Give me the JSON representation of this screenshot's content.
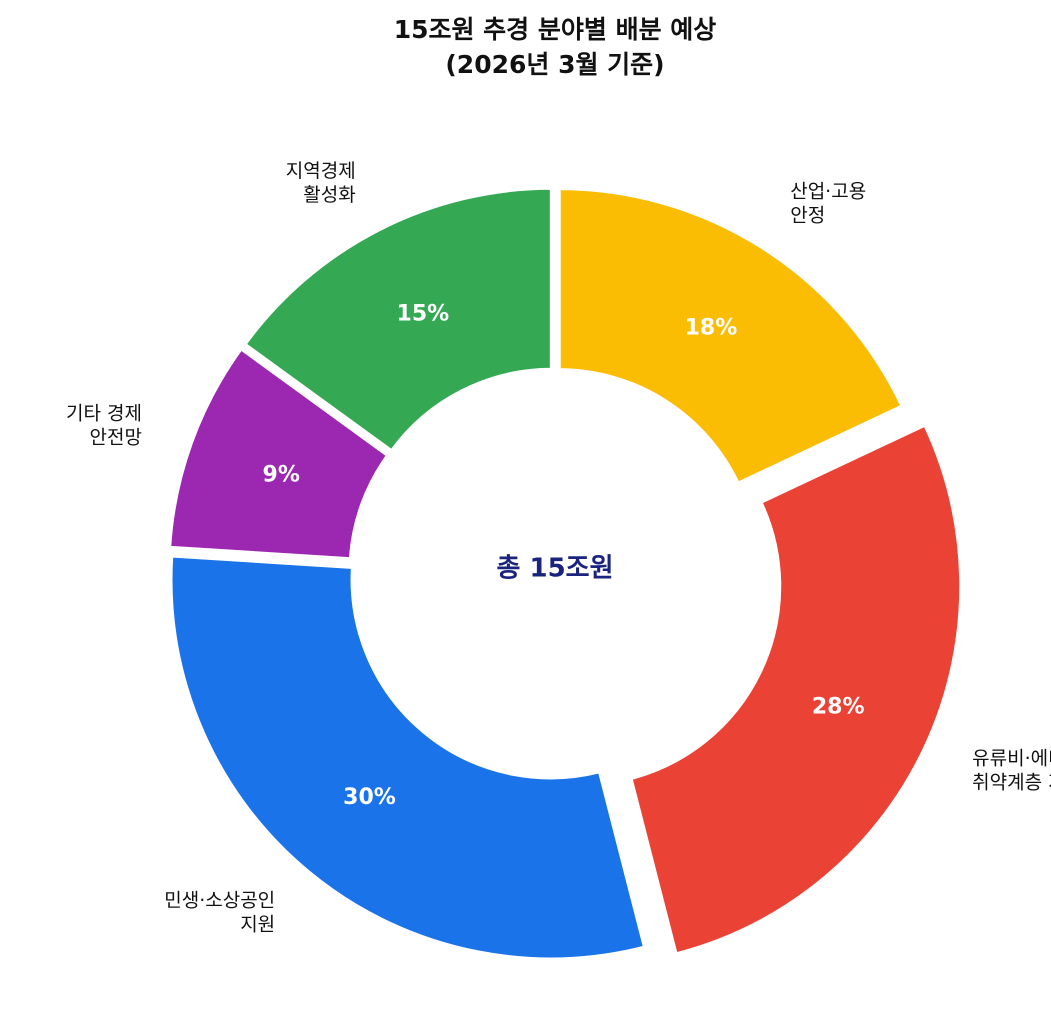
{
  "chart_data": {
    "type": "pie",
    "variant": "donut",
    "title": "15조원 추경 분야별 배분 예상",
    "subtitle": "(2026년 3월 기준)",
    "center_label": "총 15조원",
    "unit": "%",
    "start_angle_deg": 90,
    "direction": "counterclockwise",
    "slices": [
      {
        "label": [
          "지역경제",
          "활성화"
        ],
        "value": 15,
        "color": "#34A853",
        "exploded": false
      },
      {
        "label": [
          "기타 경제",
          "안전망"
        ],
        "value": 9,
        "color": "#9C27B0",
        "exploded": false
      },
      {
        "label": [
          "민생·소상공인",
          "지원"
        ],
        "value": 30,
        "color": "#1A73E8",
        "exploded": false
      },
      {
        "label": [
          "유류비·에너지",
          "취약계층 지원"
        ],
        "value": 28,
        "color": "#EA4335",
        "exploded": true
      },
      {
        "label": [
          "산업·고용",
          "안정"
        ],
        "value": 18,
        "color": "#FBBC04",
        "exploded": false
      }
    ],
    "center_text_color": "#1A237E"
  }
}
